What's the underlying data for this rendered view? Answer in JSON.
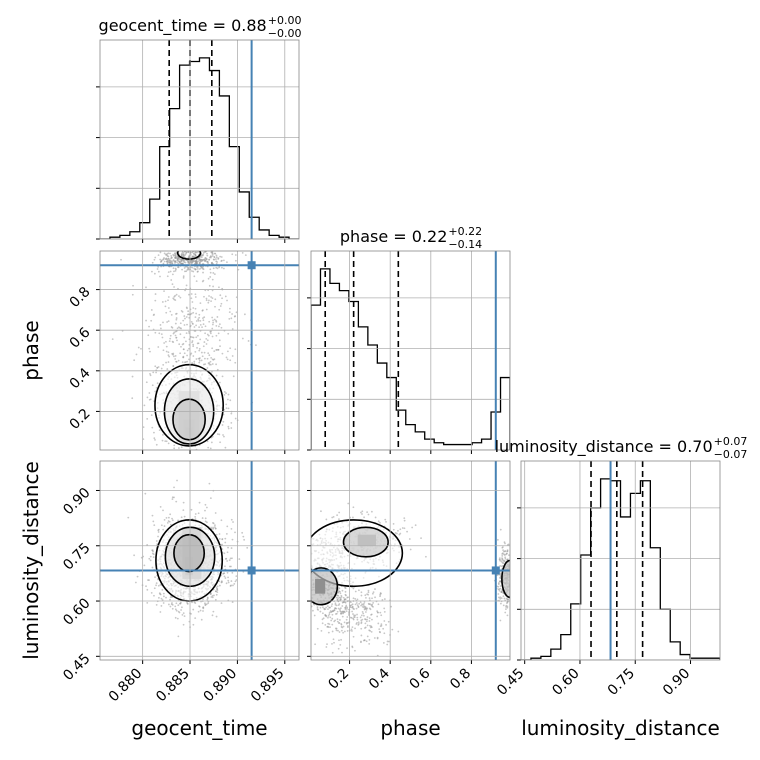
{
  "chart_data": {
    "type": "corner",
    "parameters": [
      "geocent_time",
      "phase",
      "luminosity_distance"
    ],
    "truths": {
      "geocent_time": 0.8915,
      "phase": 0.92,
      "luminosity_distance": 0.683
    },
    "titles": {
      "geocent_time": {
        "prefix": "geocent_time = 0.88",
        "sup": "+0.00",
        "sub": "−0.00"
      },
      "phase": {
        "prefix": "phase = 0.22",
        "sup": "+0.22",
        "sub": "−0.14"
      },
      "luminosity_distance": {
        "prefix": "luminosity_distance = 0.70",
        "sup": "+0.07",
        "sub": "−0.07"
      }
    },
    "axis_labels": {
      "geocent_time": "geocent_time",
      "phase": "phase",
      "luminosity_distance": "luminosity_distance"
    },
    "ticks": {
      "geocent_time": [
        "0.880",
        "0.885",
        "0.890",
        "0.895"
      ],
      "phase": [
        "0.2",
        "0.4",
        "0.6",
        "0.8"
      ],
      "luminosity_distance": [
        "0.45",
        "0.60",
        "0.75",
        "0.90"
      ]
    },
    "ranges": {
      "geocent_time": [
        0.8755,
        0.8965
      ],
      "phase": [
        0.01,
        0.99
      ],
      "luminosity_distance": [
        0.44,
        0.98
      ]
    },
    "quantiles": {
      "geocent_time": [
        0.8828,
        0.885,
        0.8873
      ],
      "phase": [
        0.08,
        0.22,
        0.44
      ],
      "luminosity_distance": [
        0.63,
        0.7,
        0.77
      ]
    },
    "histograms": {
      "geocent_time": [
        0.0,
        0.01,
        0.02,
        0.04,
        0.09,
        0.22,
        0.51,
        0.72,
        0.96,
        0.98,
        1.0,
        0.93,
        0.79,
        0.51,
        0.26,
        0.12,
        0.05,
        0.02,
        0.01,
        0.0
      ],
      "phase": [
        0.8,
        1.0,
        0.92,
        0.88,
        0.82,
        0.68,
        0.58,
        0.48,
        0.4,
        0.22,
        0.14,
        0.1,
        0.06,
        0.04,
        0.03,
        0.03,
        0.03,
        0.04,
        0.06,
        0.21,
        0.4
      ],
      "luminosity_distance": [
        0.0,
        0.01,
        0.02,
        0.06,
        0.14,
        0.31,
        0.58,
        0.84,
        1.0,
        0.99,
        0.79,
        0.92,
        0.99,
        0.62,
        0.28,
        0.1,
        0.03,
        0.01,
        0.01,
        0.01
      ]
    },
    "grid": true
  }
}
